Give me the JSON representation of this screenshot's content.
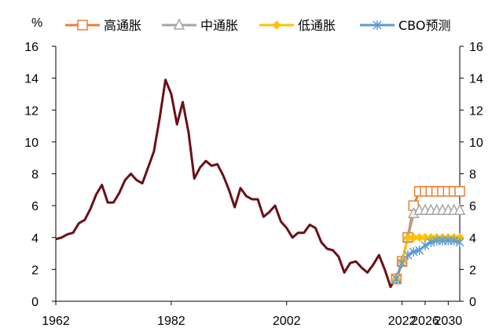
{
  "chart_data": {
    "type": "line",
    "y_unit": "%",
    "ylim": [
      0,
      16
    ],
    "yticks": [
      0,
      2,
      4,
      6,
      8,
      10,
      12,
      14,
      16
    ],
    "xlim": [
      1962,
      2032
    ],
    "xticks": [
      1962,
      1982,
      2002,
      2022,
      2026,
      2030
    ],
    "legend_position": "top",
    "history": {
      "color": "#6b0f16",
      "points": [
        [
          1962,
          3.9
        ],
        [
          1963,
          4.0
        ],
        [
          1964,
          4.2
        ],
        [
          1965,
          4.3
        ],
        [
          1966,
          4.9
        ],
        [
          1967,
          5.1
        ],
        [
          1968,
          5.8
        ],
        [
          1969,
          6.7
        ],
        [
          1970,
          7.3
        ],
        [
          1971,
          6.2
        ],
        [
          1972,
          6.2
        ],
        [
          1973,
          6.8
        ],
        [
          1974,
          7.6
        ],
        [
          1975,
          8.0
        ],
        [
          1976,
          7.6
        ],
        [
          1977,
          7.4
        ],
        [
          1978,
          8.4
        ],
        [
          1979,
          9.4
        ],
        [
          1980,
          11.5
        ],
        [
          1981,
          13.9
        ],
        [
          1982,
          13.0
        ],
        [
          1983,
          11.1
        ],
        [
          1984,
          12.5
        ],
        [
          1985,
          10.6
        ],
        [
          1986,
          7.7
        ],
        [
          1987,
          8.4
        ],
        [
          1988,
          8.8
        ],
        [
          1989,
          8.5
        ],
        [
          1990,
          8.6
        ],
        [
          1991,
          7.9
        ],
        [
          1992,
          7.0
        ],
        [
          1993,
          5.9
        ],
        [
          1994,
          7.1
        ],
        [
          1995,
          6.6
        ],
        [
          1996,
          6.4
        ],
        [
          1997,
          6.4
        ],
        [
          1998,
          5.3
        ],
        [
          1999,
          5.6
        ],
        [
          2000,
          6.0
        ],
        [
          2001,
          5.0
        ],
        [
          2002,
          4.6
        ],
        [
          2003,
          4.0
        ],
        [
          2004,
          4.3
        ],
        [
          2005,
          4.3
        ],
        [
          2006,
          4.8
        ],
        [
          2007,
          4.6
        ],
        [
          2008,
          3.7
        ],
        [
          2009,
          3.3
        ],
        [
          2010,
          3.2
        ],
        [
          2011,
          2.8
        ],
        [
          2012,
          1.8
        ],
        [
          2013,
          2.4
        ],
        [
          2014,
          2.5
        ],
        [
          2015,
          2.1
        ],
        [
          2016,
          1.8
        ],
        [
          2017,
          2.3
        ],
        [
          2018,
          2.9
        ],
        [
          2019,
          2.0
        ],
        [
          2020,
          0.9
        ],
        [
          2021,
          1.5
        ]
      ]
    },
    "x": [
      2021,
      2022,
      2023,
      2024,
      2025,
      2026,
      2027,
      2028,
      2029,
      2030,
      2031,
      2032
    ],
    "series": [
      {
        "name": "高通胀",
        "color": "#ed7d31",
        "marker": "square",
        "values": [
          1.4,
          2.5,
          4.0,
          6.0,
          6.9,
          6.9,
          6.9,
          6.9,
          6.9,
          6.9,
          6.9,
          6.9
        ]
      },
      {
        "name": "中通胀",
        "color": "#a5a5a5",
        "marker": "triangle",
        "values": [
          1.4,
          2.5,
          4.0,
          5.5,
          5.7,
          5.7,
          5.7,
          5.7,
          5.7,
          5.7,
          5.7,
          5.7
        ]
      },
      {
        "name": "低通胀",
        "color": "#ffc000",
        "marker": "diamond",
        "values": [
          1.4,
          2.5,
          4.0,
          4.0,
          4.0,
          4.0,
          4.0,
          4.0,
          4.0,
          4.0,
          4.0,
          4.0
        ]
      },
      {
        "name": "CBO预测",
        "color": "#5b9bd5",
        "marker": "star",
        "values": [
          1.4,
          2.4,
          2.9,
          3.1,
          3.2,
          3.5,
          3.7,
          3.8,
          3.8,
          3.8,
          3.8,
          3.7
        ]
      }
    ]
  }
}
